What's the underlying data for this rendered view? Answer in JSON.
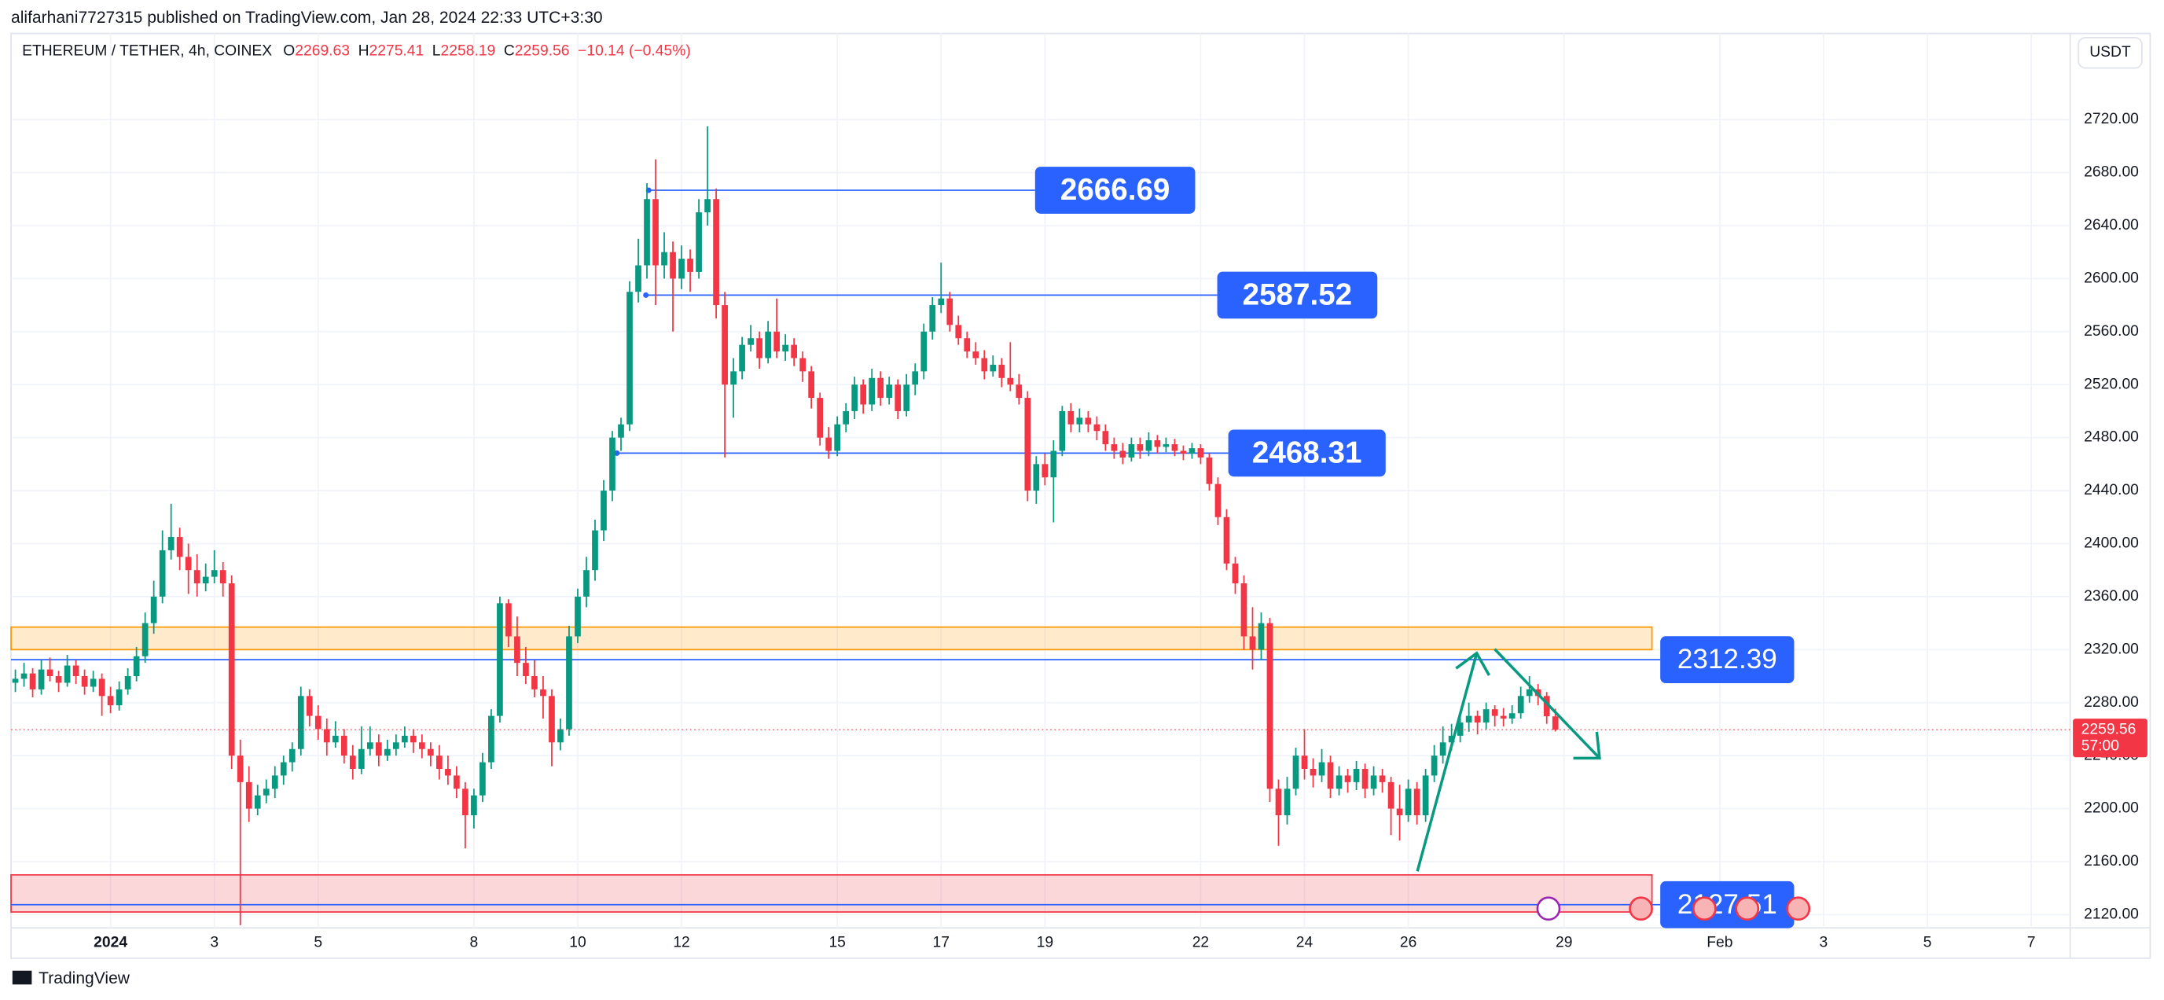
{
  "header": {
    "publisher": "alifarhani7727315 published on TradingView.com, Jan 28, 2024 22:33 UTC+3:30",
    "symbol": "ETHEREUM / TETHER, 4h, COINEX",
    "o_key": "O",
    "o": "2269.63",
    "h_key": "H",
    "h": "2275.41",
    "l_key": "L",
    "l": "2258.19",
    "c_key": "C",
    "c": "2259.56",
    "change": "−10.14 (−0.45%)",
    "currency": "USDT",
    "countdown": "57:00",
    "brand": "TradingView"
  },
  "chart_data": {
    "type": "candlestick",
    "up_color": "#089981",
    "down_color": "#f23645",
    "x": [
      -44,
      -40,
      -36,
      -32,
      -28,
      -24,
      -20,
      -16,
      -12,
      -8,
      -4,
      0,
      4,
      8,
      12,
      16,
      20,
      24,
      28,
      32,
      36,
      40,
      44,
      48,
      52,
      56,
      60,
      64,
      68,
      72,
      76,
      80,
      84,
      88,
      92,
      96,
      100,
      104,
      108,
      112,
      116,
      120,
      124,
      128,
      132,
      136,
      140,
      144,
      148,
      152,
      156,
      160,
      164,
      168,
      172,
      176,
      180,
      184,
      188,
      192,
      196,
      200,
      204,
      208,
      212,
      216,
      220,
      224,
      228,
      232,
      236,
      240,
      244,
      248,
      252,
      256,
      260,
      264,
      268,
      272,
      276,
      280,
      284,
      288,
      292,
      296,
      300,
      304,
      308,
      312,
      316,
      320,
      324,
      328,
      332,
      336,
      340,
      344,
      348,
      352,
      356,
      360,
      364,
      368,
      372,
      376,
      380,
      384,
      388,
      392,
      396,
      400,
      404,
      408,
      412,
      416,
      420,
      424,
      428,
      432,
      436,
      440,
      444,
      448,
      452,
      456,
      460,
      464,
      468,
      472,
      476,
      480,
      484,
      488,
      492,
      496,
      500,
      504,
      508,
      512,
      516,
      520,
      524,
      528,
      532,
      536,
      540,
      544,
      548,
      552,
      556,
      560,
      564,
      568,
      572,
      576,
      580,
      584,
      588,
      592,
      596,
      600,
      604,
      608,
      612,
      616,
      620,
      624,
      628,
      632,
      636,
      640,
      644,
      648,
      652,
      656,
      660,
      664,
      668
    ],
    "ohlc": [
      [
        2295,
        2305,
        2288,
        2298
      ],
      [
        2298,
        2310,
        2292,
        2302
      ],
      [
        2302,
        2306,
        2284,
        2290
      ],
      [
        2290,
        2312,
        2286,
        2305
      ],
      [
        2305,
        2314,
        2296,
        2300
      ],
      [
        2300,
        2304,
        2288,
        2295
      ],
      [
        2295,
        2316,
        2292,
        2308
      ],
      [
        2308,
        2312,
        2294,
        2300
      ],
      [
        2300,
        2305,
        2286,
        2292
      ],
      [
        2292,
        2304,
        2288,
        2298
      ],
      [
        2298,
        2302,
        2270,
        2285
      ],
      [
        2285,
        2292,
        2272,
        2278
      ],
      [
        2278,
        2296,
        2274,
        2290
      ],
      [
        2290,
        2306,
        2286,
        2300
      ],
      [
        2300,
        2322,
        2296,
        2315
      ],
      [
        2315,
        2348,
        2310,
        2340
      ],
      [
        2340,
        2372,
        2332,
        2360
      ],
      [
        2360,
        2410,
        2355,
        2395
      ],
      [
        2395,
        2430,
        2388,
        2405
      ],
      [
        2405,
        2412,
        2380,
        2390
      ],
      [
        2390,
        2400,
        2362,
        2380
      ],
      [
        2380,
        2392,
        2360,
        2370
      ],
      [
        2370,
        2385,
        2364,
        2375
      ],
      [
        2375,
        2395,
        2370,
        2380
      ],
      [
        2380,
        2386,
        2360,
        2370
      ],
      [
        2370,
        2376,
        2230,
        2240
      ],
      [
        2240,
        2252,
        2112,
        2220
      ],
      [
        2220,
        2232,
        2190,
        2200
      ],
      [
        2200,
        2218,
        2195,
        2210
      ],
      [
        2210,
        2222,
        2204,
        2215
      ],
      [
        2215,
        2232,
        2208,
        2225
      ],
      [
        2225,
        2240,
        2218,
        2235
      ],
      [
        2235,
        2250,
        2228,
        2245
      ],
      [
        2245,
        2292,
        2240,
        2285
      ],
      [
        2285,
        2290,
        2262,
        2270
      ],
      [
        2270,
        2278,
        2252,
        2260
      ],
      [
        2260,
        2268,
        2240,
        2250
      ],
      [
        2250,
        2266,
        2246,
        2255
      ],
      [
        2255,
        2260,
        2234,
        2240
      ],
      [
        2240,
        2248,
        2222,
        2230
      ],
      [
        2230,
        2262,
        2226,
        2245
      ],
      [
        2245,
        2262,
        2240,
        2250
      ],
      [
        2250,
        2256,
        2232,
        2240
      ],
      [
        2240,
        2252,
        2236,
        2245
      ],
      [
        2245,
        2256,
        2240,
        2250
      ],
      [
        2250,
        2262,
        2246,
        2255
      ],
      [
        2255,
        2260,
        2242,
        2250
      ],
      [
        2250,
        2256,
        2238,
        2245
      ],
      [
        2245,
        2250,
        2232,
        2240
      ],
      [
        2240,
        2248,
        2222,
        2230
      ],
      [
        2230,
        2240,
        2218,
        2225
      ],
      [
        2225,
        2232,
        2208,
        2215
      ],
      [
        2215,
        2220,
        2170,
        2195
      ],
      [
        2195,
        2215,
        2185,
        2210
      ],
      [
        2210,
        2242,
        2205,
        2235
      ],
      [
        2235,
        2275,
        2230,
        2270
      ],
      [
        2270,
        2360,
        2265,
        2355
      ],
      [
        2355,
        2358,
        2322,
        2330
      ],
      [
        2330,
        2345,
        2300,
        2310
      ],
      [
        2310,
        2322,
        2294,
        2300
      ],
      [
        2300,
        2312,
        2284,
        2290
      ],
      [
        2290,
        2300,
        2268,
        2285
      ],
      [
        2285,
        2290,
        2232,
        2250
      ],
      [
        2250,
        2268,
        2244,
        2260
      ],
      [
        2260,
        2338,
        2255,
        2330
      ],
      [
        2330,
        2366,
        2325,
        2360
      ],
      [
        2360,
        2390,
        2352,
        2380
      ],
      [
        2380,
        2418,
        2372,
        2410
      ],
      [
        2410,
        2448,
        2402,
        2440
      ],
      [
        2440,
        2485,
        2432,
        2480
      ],
      [
        2480,
        2495,
        2470,
        2490
      ],
      [
        2490,
        2598,
        2485,
        2590
      ],
      [
        2590,
        2630,
        2582,
        2610
      ],
      [
        2610,
        2672,
        2600,
        2660
      ],
      [
        2660,
        2690,
        2580,
        2610
      ],
      [
        2610,
        2635,
        2600,
        2620
      ],
      [
        2620,
        2628,
        2560,
        2600
      ],
      [
        2600,
        2625,
        2592,
        2615
      ],
      [
        2615,
        2622,
        2590,
        2605
      ],
      [
        2605,
        2660,
        2600,
        2650
      ],
      [
        2650,
        2715,
        2640,
        2660
      ],
      [
        2660,
        2668,
        2570,
        2580
      ],
      [
        2580,
        2590,
        2465,
        2520
      ],
      [
        2520,
        2540,
        2495,
        2530
      ],
      [
        2530,
        2556,
        2524,
        2550
      ],
      [
        2550,
        2565,
        2545,
        2555
      ],
      [
        2555,
        2560,
        2532,
        2540
      ],
      [
        2540,
        2568,
        2536,
        2560
      ],
      [
        2560,
        2585,
        2540,
        2545
      ],
      [
        2545,
        2558,
        2538,
        2550
      ],
      [
        2550,
        2555,
        2534,
        2540
      ],
      [
        2540,
        2545,
        2522,
        2530
      ],
      [
        2530,
        2534,
        2502,
        2510
      ],
      [
        2510,
        2514,
        2474,
        2480
      ],
      [
        2480,
        2488,
        2464,
        2470
      ],
      [
        2470,
        2496,
        2466,
        2490
      ],
      [
        2490,
        2506,
        2484,
        2500
      ],
      [
        2500,
        2526,
        2494,
        2520
      ],
      [
        2520,
        2524,
        2498,
        2505
      ],
      [
        2505,
        2532,
        2500,
        2525
      ],
      [
        2525,
        2530,
        2504,
        2510
      ],
      [
        2510,
        2526,
        2505,
        2520
      ],
      [
        2520,
        2524,
        2494,
        2500
      ],
      [
        2500,
        2528,
        2496,
        2520
      ],
      [
        2520,
        2536,
        2512,
        2530
      ],
      [
        2530,
        2566,
        2524,
        2560
      ],
      [
        2560,
        2586,
        2554,
        2580
      ],
      [
        2580,
        2612,
        2574,
        2585
      ],
      [
        2585,
        2590,
        2560,
        2565
      ],
      [
        2565,
        2572,
        2550,
        2555
      ],
      [
        2555,
        2560,
        2540,
        2545
      ],
      [
        2545,
        2552,
        2535,
        2540
      ],
      [
        2540,
        2546,
        2524,
        2530
      ],
      [
        2530,
        2542,
        2526,
        2535
      ],
      [
        2535,
        2540,
        2518,
        2525
      ],
      [
        2525,
        2552,
        2515,
        2520
      ],
      [
        2520,
        2528,
        2505,
        2510
      ],
      [
        2510,
        2515,
        2432,
        2440
      ],
      [
        2440,
        2466,
        2430,
        2460
      ],
      [
        2460,
        2468,
        2444,
        2450
      ],
      [
        2450,
        2478,
        2416,
        2470
      ],
      [
        2470,
        2504,
        2466,
        2500
      ],
      [
        2500,
        2506,
        2484,
        2490
      ],
      [
        2490,
        2502,
        2484,
        2495
      ],
      [
        2495,
        2500,
        2484,
        2490
      ],
      [
        2490,
        2496,
        2478,
        2485
      ],
      [
        2485,
        2490,
        2470,
        2475
      ],
      [
        2475,
        2480,
        2464,
        2470
      ],
      [
        2470,
        2476,
        2460,
        2465
      ],
      [
        2465,
        2480,
        2462,
        2475
      ],
      [
        2475,
        2480,
        2464,
        2470
      ],
      [
        2470,
        2484,
        2466,
        2478
      ],
      [
        2478,
        2482,
        2468,
        2473
      ],
      [
        2473,
        2480,
        2469,
        2475
      ],
      [
        2475,
        2479,
        2466,
        2470
      ],
      [
        2470,
        2474,
        2463,
        2468
      ],
      [
        2468,
        2476,
        2464,
        2472
      ],
      [
        2472,
        2475,
        2460,
        2465
      ],
      [
        2465,
        2468,
        2440,
        2445
      ],
      [
        2445,
        2450,
        2414,
        2420
      ],
      [
        2420,
        2426,
        2380,
        2385
      ],
      [
        2385,
        2390,
        2362,
        2370
      ],
      [
        2370,
        2376,
        2320,
        2330
      ],
      [
        2330,
        2352,
        2305,
        2320
      ],
      [
        2320,
        2348,
        2312,
        2340
      ],
      [
        2340,
        2344,
        2205,
        2215
      ],
      [
        2215,
        2222,
        2172,
        2195
      ],
      [
        2195,
        2224,
        2188,
        2215
      ],
      [
        2215,
        2246,
        2210,
        2240
      ],
      [
        2240,
        2260,
        2222,
        2230
      ],
      [
        2230,
        2238,
        2216,
        2225
      ],
      [
        2225,
        2245,
        2220,
        2235
      ],
      [
        2235,
        2240,
        2208,
        2215
      ],
      [
        2215,
        2232,
        2210,
        2225
      ],
      [
        2225,
        2230,
        2212,
        2220
      ],
      [
        2220,
        2236,
        2214,
        2230
      ],
      [
        2230,
        2234,
        2208,
        2215
      ],
      [
        2215,
        2232,
        2210,
        2225
      ],
      [
        2225,
        2230,
        2212,
        2220
      ],
      [
        2220,
        2224,
        2180,
        2200
      ],
      [
        2200,
        2218,
        2176,
        2195
      ],
      [
        2195,
        2222,
        2190,
        2215
      ],
      [
        2215,
        2220,
        2188,
        2195
      ],
      [
        2195,
        2230,
        2190,
        2225
      ],
      [
        2225,
        2248,
        2220,
        2240
      ],
      [
        2240,
        2262,
        2234,
        2250
      ],
      [
        2250,
        2264,
        2244,
        2255
      ],
      [
        2255,
        2272,
        2250,
        2265
      ],
      [
        2265,
        2280,
        2258,
        2270
      ],
      [
        2270,
        2274,
        2256,
        2265
      ],
      [
        2265,
        2280,
        2260,
        2275
      ],
      [
        2275,
        2278,
        2262,
        2270
      ],
      [
        2270,
        2276,
        2262,
        2268
      ],
      [
        2268,
        2278,
        2264,
        2272
      ],
      [
        2272,
        2292,
        2268,
        2285
      ],
      [
        2285,
        2300,
        2280,
        2290
      ],
      [
        2290,
        2294,
        2278,
        2285
      ],
      [
        2285,
        2288,
        2264,
        2269.7
      ],
      [
        2269.63,
        2275.41,
        2258.19,
        2259.56
      ]
    ],
    "xlim": [
      -46,
      906
    ],
    "ylim": [
      2785,
      2110
    ],
    "xticks": [
      {
        "value": 0,
        "label": "2024"
      },
      {
        "value": 48,
        "label": "3"
      },
      {
        "value": 96,
        "label": "5"
      },
      {
        "value": 168,
        "label": "8"
      },
      {
        "value": 216,
        "label": "10"
      },
      {
        "value": 264,
        "label": "12"
      },
      {
        "value": 336,
        "label": "15"
      },
      {
        "value": 384,
        "label": "17"
      },
      {
        "value": 432,
        "label": "19"
      },
      {
        "value": 504,
        "label": "22"
      },
      {
        "value": 552,
        "label": "24"
      },
      {
        "value": 600,
        "label": "26"
      },
      {
        "value": 672,
        "label": "29"
      },
      {
        "value": 744,
        "label": "Feb"
      },
      {
        "value": 792,
        "label": "3"
      },
      {
        "value": 840,
        "label": "5"
      },
      {
        "value": 888,
        "label": "7"
      }
    ],
    "yticks": [
      {
        "value": 2720,
        "label": "2720.00"
      },
      {
        "value": 2680,
        "label": "2680.00"
      },
      {
        "value": 2640,
        "label": "2640.00"
      },
      {
        "value": 2600,
        "label": "2600.00"
      },
      {
        "value": 2560,
        "label": "2560.00"
      },
      {
        "value": 2520,
        "label": "2520.00"
      },
      {
        "value": 2480,
        "label": "2480.00"
      },
      {
        "value": 2440,
        "label": "2440.00"
      },
      {
        "value": 2400,
        "label": "2400.00"
      },
      {
        "value": 2360,
        "label": "2360.00"
      },
      {
        "value": 2320,
        "label": "2320.00"
      },
      {
        "value": 2280,
        "label": "2280.00"
      },
      {
        "value": 2240,
        "label": "2240.00"
      },
      {
        "value": 2200,
        "label": "2200.00"
      },
      {
        "value": 2160,
        "label": "2160.00"
      },
      {
        "value": 2120,
        "label": "2120.00"
      }
    ],
    "grid": true,
    "zones": [
      {
        "top": 2337,
        "bottom": 2320,
        "color": "#ff9800"
      },
      {
        "top": 2150,
        "bottom": 2122,
        "color": "#f23645"
      }
    ],
    "levels": [
      2666.69,
      2587.52,
      2468.31,
      2312.39,
      2127.51
    ],
    "level_color": "#2962ff"
  }
}
